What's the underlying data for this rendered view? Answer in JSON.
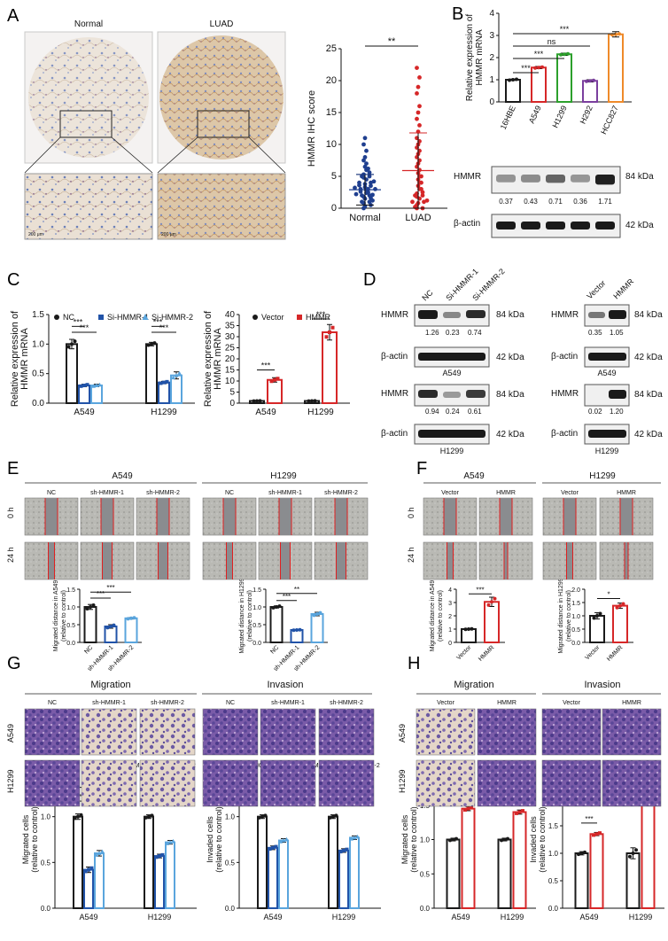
{
  "panels": {
    "A": "A",
    "B": "B",
    "C": "C",
    "D": "D",
    "E": "E",
    "F": "F",
    "G": "G",
    "H": "H"
  },
  "colors": {
    "black": "#1a1a1a",
    "red": "#d62728",
    "navy": "#1f3f8f",
    "darkblue": "#2153a8",
    "lightblue": "#5aa5dd",
    "green": "#2ca02c",
    "purple": "#7b3f9e",
    "orange": "#ef8a2a",
    "tissue": "#e6d8c8",
    "stain_purple": "#7a5aa8",
    "scratch": "#8d8f92"
  },
  "A": {
    "img_titles": [
      "Normal",
      "LUAD"
    ],
    "scalebar": [
      "200 μm",
      "200 μm"
    ]
  },
  "chart_data": [
    {
      "id": "A-scatter",
      "type": "scatter",
      "categories": [
        "Normal",
        "LUAD"
      ],
      "ylabel": "HMMR IHC score",
      "ylim": [
        0,
        25
      ],
      "yticks": [
        0,
        5,
        10,
        15,
        20,
        25
      ],
      "series": [
        {
          "name": "Normal",
          "mean": 2.9,
          "sd": 2.4,
          "values": [
            0,
            0.3,
            0.5,
            0.8,
            1,
            1,
            1.2,
            1.5,
            1.6,
            1.8,
            2,
            2,
            2.1,
            2.2,
            2.4,
            2.5,
            2.6,
            2.8,
            3,
            3,
            3,
            3.2,
            3.3,
            3.5,
            3.6,
            3.8,
            4,
            4,
            4.2,
            4.5,
            4.8,
            5,
            5,
            5.3,
            5.6,
            6,
            6.2,
            6.5,
            7,
            7.5,
            8,
            9,
            10,
            11
          ]
        },
        {
          "name": "LUAD",
          "mean": 5.9,
          "sd": 5.9,
          "values": [
            0,
            0,
            0.2,
            0.5,
            0.8,
            1,
            1,
            1.2,
            1.5,
            1.8,
            2,
            2,
            2.3,
            2.5,
            3,
            3,
            3.5,
            4,
            4,
            4.5,
            5,
            5,
            5.5,
            6,
            6.5,
            7,
            7.5,
            8,
            8.5,
            9,
            9.5,
            10,
            10.5,
            11,
            12,
            13,
            14,
            15,
            16,
            18,
            19,
            20.5,
            22
          ]
        }
      ],
      "significance": "**"
    },
    {
      "id": "B-bar",
      "type": "bar",
      "categories": [
        "16HBE",
        "A549",
        "H1299",
        "H292",
        "HCC827"
      ],
      "values": [
        1.0,
        1.55,
        2.15,
        0.95,
        3.05
      ],
      "errors": [
        0.03,
        0.05,
        0.05,
        0.05,
        0.12
      ],
      "ylabel": "Relative expression of HMMR mRNA",
      "ylim": [
        0,
        4
      ],
      "yticks": [
        0,
        1,
        2,
        3,
        4
      ],
      "comparisons": [
        {
          "a": 0,
          "b": 1,
          "sig": "***"
        },
        {
          "a": 0,
          "b": 2,
          "sig": "***"
        },
        {
          "a": 0,
          "b": 3,
          "sig": "ns"
        },
        {
          "a": 0,
          "b": 4,
          "sig": "***"
        }
      ]
    },
    {
      "id": "C-left",
      "type": "bar",
      "categories": [
        "A549",
        "H1299"
      ],
      "series": [
        {
          "name": "NC",
          "values": [
            1.0,
            1.0
          ],
          "errors": [
            0.08,
            0.03
          ]
        },
        {
          "name": "Si-HMMR-1",
          "values": [
            0.3,
            0.35
          ],
          "errors": [
            0.02,
            0.02
          ]
        },
        {
          "name": "Si-HMMR-2",
          "values": [
            0.3,
            0.47
          ],
          "errors": [
            0.02,
            0.06
          ]
        }
      ],
      "ylabel": "Relative expression of HMMR mRNA",
      "ylim": [
        0,
        1.5
      ],
      "yticks": [
        0.0,
        0.5,
        1.0,
        1.5
      ],
      "significance": [
        "***",
        "***",
        "***",
        "***"
      ]
    },
    {
      "id": "C-right",
      "type": "bar",
      "categories": [
        "A549",
        "H1299"
      ],
      "series": [
        {
          "name": "Vector",
          "values": [
            1.0,
            1.0
          ],
          "errors": [
            0.05,
            0.05
          ]
        },
        {
          "name": "HMMR",
          "values": [
            10.5,
            32
          ],
          "errors": [
            1.0,
            3.5
          ]
        }
      ],
      "ylabel": "Relative expression of HMMR mRNA",
      "ylim": [
        0,
        40
      ],
      "yticks": [
        0,
        5,
        10,
        15,
        20,
        25,
        30,
        35,
        40
      ],
      "significance": [
        "***",
        "***"
      ]
    },
    {
      "id": "E-A549",
      "type": "bar",
      "categories": [
        "NC",
        "sh-HMMR-1",
        "sh-HMMR-2"
      ],
      "values": [
        1.0,
        0.45,
        0.68
      ],
      "errors": [
        0.07,
        0.05,
        0.02
      ],
      "ylabel": "Migrated distance in A549 (relative to control)",
      "ylim": [
        0,
        1.5
      ],
      "yticks": [
        0.0,
        0.5,
        1.0,
        1.5
      ],
      "significance": [
        "***",
        "***"
      ]
    },
    {
      "id": "E-H1299",
      "type": "bar",
      "categories": [
        "NC",
        "sh-HMMR-1",
        "sh-HMMR-2"
      ],
      "values": [
        1.0,
        0.35,
        0.8
      ],
      "errors": [
        0.03,
        0.01,
        0.05
      ],
      "ylabel": "Migrated distance in H1299 (relative to control)",
      "ylim": [
        0,
        1.5
      ],
      "yticks": [
        0.0,
        0.5,
        1.0,
        1.5
      ],
      "significance": [
        "***",
        "**"
      ]
    },
    {
      "id": "F-A549",
      "type": "bar",
      "categories": [
        "Vector",
        "HMMR"
      ],
      "values": [
        1.0,
        3.05
      ],
      "errors": [
        0.02,
        0.35
      ],
      "ylabel": "Migrated distance in A549 (relative to control)",
      "ylim": [
        0,
        4
      ],
      "yticks": [
        0,
        1,
        2,
        3,
        4
      ],
      "significance": [
        "***"
      ]
    },
    {
      "id": "F-H1299",
      "type": "bar",
      "categories": [
        "Vector",
        "HMMR"
      ],
      "values": [
        1.0,
        1.38
      ],
      "errors": [
        0.12,
        0.1
      ],
      "ylabel": "Migrated distance in H1299 (relative to control)",
      "ylim": [
        0,
        2.0
      ],
      "yticks": [
        0.0,
        0.5,
        1.0,
        1.5,
        2.0
      ],
      "significance": [
        "*"
      ]
    },
    {
      "id": "G-mig",
      "type": "bar",
      "categories": [
        "A549",
        "H1299"
      ],
      "series": [
        {
          "name": "NC",
          "values": [
            1.0,
            1.0
          ],
          "errors": [
            0.03,
            0.02
          ]
        },
        {
          "name": "sh-HMMR-1",
          "values": [
            0.42,
            0.57
          ],
          "errors": [
            0.03,
            0.02
          ]
        },
        {
          "name": "sh-HMMR-2",
          "values": [
            0.6,
            0.72
          ],
          "errors": [
            0.03,
            0.02
          ]
        }
      ],
      "ylabel": "Migrated cells (relative to control)",
      "ylim": [
        0,
        1.5
      ],
      "yticks": [
        0.0,
        0.5,
        1.0,
        1.5
      ],
      "significance": [
        "***",
        "***",
        "***",
        "***"
      ]
    },
    {
      "id": "G-inv",
      "type": "bar",
      "categories": [
        "A549",
        "H1299"
      ],
      "series": [
        {
          "name": "NC",
          "values": [
            1.0,
            1.0
          ],
          "errors": [
            0.02,
            0.02
          ]
        },
        {
          "name": "sh-HMMR-1",
          "values": [
            0.66,
            0.63
          ],
          "errors": [
            0.02,
            0.02
          ]
        },
        {
          "name": "sh-HMMR-2",
          "values": [
            0.74,
            0.77
          ],
          "errors": [
            0.02,
            0.02
          ]
        }
      ],
      "ylabel": "Invaded cells (relative to control)",
      "ylim": [
        0,
        1.5
      ],
      "yticks": [
        0.0,
        0.5,
        1.0,
        1.5
      ],
      "significance": [
        "***",
        "***",
        "***",
        "***"
      ]
    },
    {
      "id": "H-mig",
      "type": "bar",
      "categories": [
        "A549",
        "H1299"
      ],
      "series": [
        {
          "name": "Vector",
          "values": [
            1.0,
            1.0
          ],
          "errors": [
            0.02,
            0.02
          ]
        },
        {
          "name": "HMMR",
          "values": [
            1.45,
            1.4
          ],
          "errors": [
            0.03,
            0.03
          ]
        }
      ],
      "ylabel": "Migrated cells (relative to control)",
      "ylim": [
        0,
        2.0
      ],
      "yticks": [
        0.0,
        0.5,
        1.0,
        1.5,
        2.0
      ],
      "significance": [
        "***",
        "***"
      ]
    },
    {
      "id": "H-inv",
      "type": "bar",
      "categories": [
        "A549",
        "H1299"
      ],
      "series": [
        {
          "name": "Vector",
          "values": [
            1.0,
            1.0
          ],
          "errors": [
            0.03,
            0.1
          ]
        },
        {
          "name": "HMMR",
          "values": [
            1.35,
            2.1
          ],
          "errors": [
            0.03,
            0.05
          ]
        }
      ],
      "ylabel": "Invaded cells (relative to control)",
      "ylim": [
        0,
        2.5
      ],
      "yticks": [
        0.0,
        0.5,
        1.0,
        1.5,
        2.0,
        2.5
      ],
      "significance": [
        "***",
        "***"
      ]
    }
  ],
  "B": {
    "blot_label_1": "HMMR",
    "blot_label_2": "β-actin",
    "kda_1": "84 kDa",
    "kda_2": "42 kDa",
    "quant": [
      "0.37",
      "0.43",
      "0.71",
      "0.36",
      "1.71"
    ]
  },
  "D": {
    "left_headers": [
      "NC",
      "Si-HMMR-1",
      "Si-HMMR-2"
    ],
    "right_headers": [
      "Vector",
      "HMMR"
    ],
    "hmmr": "HMMR",
    "actin": "β-actin",
    "k84": "84 kDa",
    "k42": "42 kDa",
    "quant_a549_si": [
      "1.26",
      "0.23",
      "0.74"
    ],
    "quant_h1299_si": [
      "0.94",
      "0.24",
      "0.61"
    ],
    "quant_a549_oe": [
      "0.35",
      "1.05"
    ],
    "quant_h1299_oe": [
      "0.02",
      "1.20"
    ],
    "cell_a549": "A549",
    "cell_h1299": "H1299"
  },
  "E": {
    "cell_titles": [
      "A549",
      "H1299"
    ],
    "conditions": [
      "NC",
      "sh-HMMR-1",
      "sh-HMMR-2",
      "NC",
      "sh-HMMR-1",
      "sh-HMMR-2"
    ],
    "rows": [
      "0 h",
      "24 h"
    ]
  },
  "F": {
    "cell_titles": [
      "A549",
      "H1299"
    ],
    "conditions": [
      "Vector",
      "HMMR",
      "Vector",
      "HMMR"
    ],
    "rows": [
      "0 h",
      "24 h"
    ]
  },
  "G": {
    "assay_titles": [
      "Migration",
      "Invasion"
    ],
    "conditions": [
      "NC",
      "sh-HMMR-1",
      "sh-HMMR-2",
      "NC",
      "sh-HMMR-1",
      "sh-HMMR-2"
    ],
    "rows": [
      "A549",
      "H1299"
    ]
  },
  "H": {
    "assay_titles": [
      "Migration",
      "Invasion"
    ],
    "conditions": [
      "Vector",
      "HMMR",
      "Vector",
      "HMMR"
    ],
    "rows": [
      "A549",
      "H1299"
    ]
  }
}
